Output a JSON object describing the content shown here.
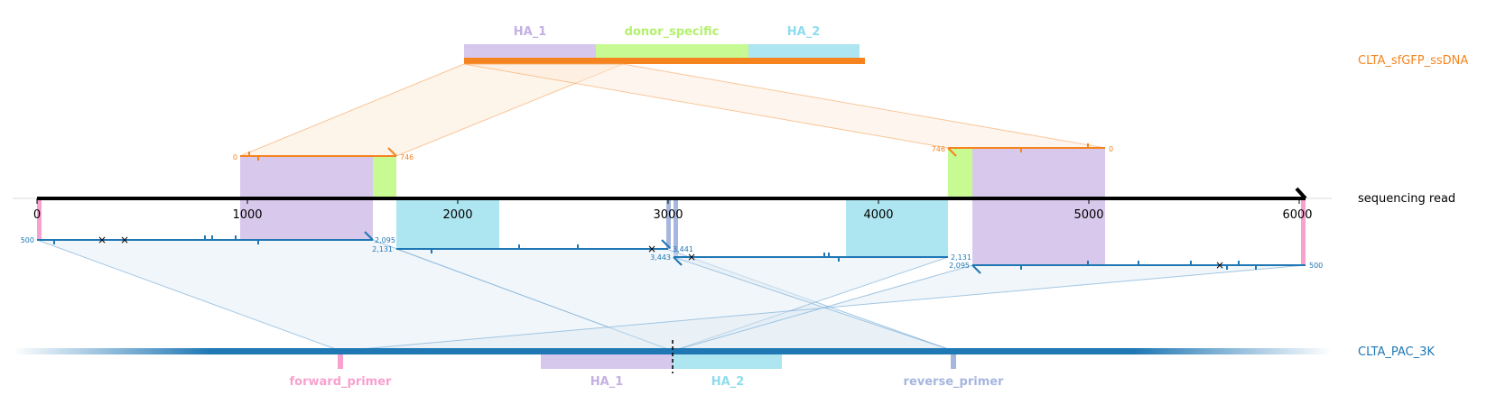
{
  "rows": {
    "donor": {
      "label": "CLTA_sfGFP_ssDNA",
      "color": "#f5841f"
    },
    "read": {
      "label": "sequencing read",
      "color": "#000000"
    },
    "target": {
      "label": "CLTA_PAC_3K",
      "color": "#1f77b4"
    }
  },
  "donor_features": [
    {
      "label": "HA_1",
      "color": "#c5b0e3"
    },
    {
      "label": "donor_specific",
      "color": "#b9f57a"
    },
    {
      "label": "HA_2",
      "color": "#9fe0ee"
    }
  ],
  "target_features": [
    {
      "label": "forward_primer",
      "color": "#f7a1cf"
    },
    {
      "label": "HA_1",
      "color": "#c5b0e3"
    },
    {
      "label": "HA_2",
      "color": "#9fe0ee"
    },
    {
      "label": "reverse_primer",
      "color": "#a6b6de"
    }
  ],
  "read_axis": {
    "ticks": [
      "0",
      "1000",
      "2000",
      "3000",
      "4000",
      "5000",
      "6000"
    ]
  },
  "alignment_labels": {
    "donor_left_start": "0",
    "donor_left_end": "746",
    "donor_right_start": "746",
    "donor_right_end": "0",
    "t1_start": "500",
    "t1_end": "2,095",
    "t2_start": "2,131",
    "t2_end": "3,441",
    "t3_start": "3,443",
    "t3_end": "2,131",
    "t4_start": "2,095",
    "t4_end": "500"
  }
}
